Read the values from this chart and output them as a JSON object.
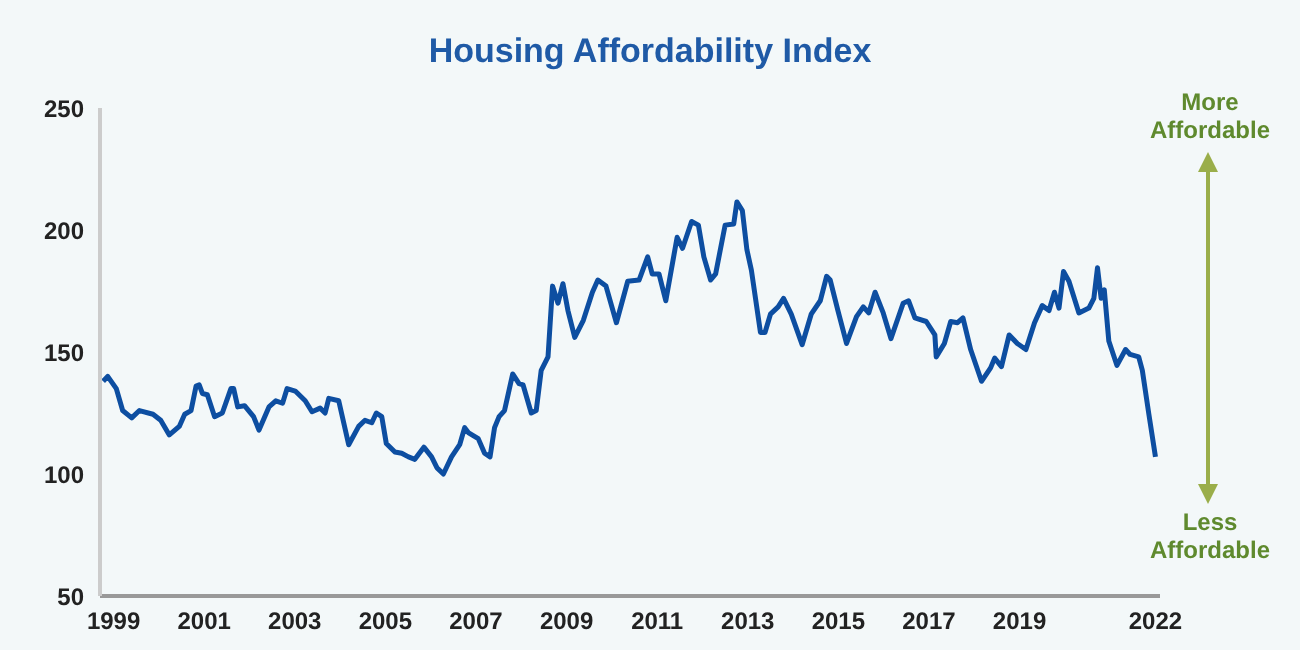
{
  "chart_data": {
    "type": "line",
    "title": "Housing Affordability Index",
    "x": [
      1998.77,
      1998.87,
      1999.06,
      1999.2,
      1999.4,
      1999.57,
      1999.87,
      2000.04,
      2000.23,
      2000.45,
      2000.57,
      2000.71,
      2000.82,
      2000.89,
      2000.96,
      2001.07,
      2001.23,
      2001.4,
      2001.59,
      2001.65,
      2001.74,
      2001.89,
      2002.09,
      2002.21,
      2002.43,
      2002.58,
      2002.73,
      2002.83,
      2003.01,
      2003.23,
      2003.38,
      2003.56,
      2003.67,
      2003.75,
      2003.97,
      2004.19,
      2004.41,
      2004.55,
      2004.7,
      2004.8,
      2004.92,
      2005.02,
      2005.21,
      2005.36,
      2005.51,
      2005.65,
      2005.85,
      2006.02,
      2006.14,
      2006.28,
      2006.46,
      2006.64,
      2006.75,
      2006.83,
      2007.05,
      2007.19,
      2007.31,
      2007.41,
      2007.51,
      2007.63,
      2007.81,
      2007.95,
      2008.04,
      2008.22,
      2008.33,
      2008.44,
      2008.59,
      2008.69,
      2008.81,
      2008.92,
      2009.03,
      2009.18,
      2009.37,
      2009.57,
      2009.69,
      2009.87,
      2010.1,
      2010.35,
      2010.6,
      2010.79,
      2010.89,
      2011.04,
      2011.19,
      2011.44,
      2011.56,
      2011.76,
      2011.91,
      2012.03,
      2012.18,
      2012.29,
      2012.5,
      2012.69,
      2012.76,
      2012.88,
      2012.98,
      2013.08,
      2013.28,
      2013.38,
      2013.5,
      2013.67,
      2013.79,
      2013.96,
      2014.2,
      2014.4,
      2014.6,
      2014.74,
      2014.82,
      2014.99,
      2015.18,
      2015.4,
      2015.55,
      2015.67,
      2015.81,
      2015.99,
      2016.16,
      2016.43,
      2016.55,
      2016.69,
      2016.94,
      2017.13,
      2017.16,
      2017.34,
      2017.48,
      2017.63,
      2017.75,
      2017.92,
      2018.16,
      2018.36,
      2018.45,
      2018.6,
      2018.77,
      2018.95,
      2019.14,
      2019.33,
      2019.5,
      2019.65,
      2019.77,
      2019.87,
      2019.97,
      2020.09,
      2020.31,
      2020.53,
      2020.64,
      2020.72,
      2020.8,
      2020.87,
      2020.97,
      2021.15,
      2021.34,
      2021.44,
      2021.63,
      2021.71,
      2021.85,
      2022.0
    ],
    "series": [
      {
        "color": "#0d4ea1",
        "values": [
          138,
          140,
          135,
          126,
          123,
          126,
          124.5,
          122,
          116,
          119.5,
          124.5,
          126,
          136,
          136.5,
          133,
          132.5,
          123.5,
          125,
          135,
          135,
          127.5,
          128,
          123.5,
          118,
          127.5,
          130,
          129,
          135,
          134,
          130,
          125.5,
          127,
          125,
          131,
          130,
          112,
          119.5,
          122,
          121,
          125,
          123.5,
          112.5,
          109,
          108.5,
          107,
          106,
          111,
          107,
          102.5,
          100,
          107,
          112,
          119,
          117,
          114.5,
          108.5,
          107,
          119,
          123.5,
          126,
          141,
          137,
          136.5,
          125,
          126,
          142.5,
          148,
          177,
          170,
          178,
          167,
          156,
          163,
          174.5,
          179.5,
          177,
          162,
          179,
          179.5,
          189,
          182,
          182,
          171,
          197,
          192.5,
          203.5,
          202,
          189,
          179.5,
          182,
          202,
          202.5,
          211.5,
          208,
          192,
          183.5,
          158,
          158,
          165.5,
          168.5,
          172,
          165.5,
          153,
          165.5,
          171,
          181,
          179.5,
          167,
          153.5,
          164.5,
          168.5,
          166,
          174.5,
          166,
          155.5,
          170,
          171,
          164,
          162.5,
          157,
          148,
          153.5,
          162.5,
          162,
          164,
          151,
          138,
          143.5,
          147.5,
          144,
          157,
          153.5,
          151,
          162,
          169,
          167,
          174.5,
          168,
          183,
          179,
          166,
          168,
          172,
          184.5,
          172,
          175.5,
          154.5,
          144.5,
          151,
          149,
          148,
          142.5,
          125,
          107
        ]
      }
    ],
    "xlim": [
      1998.7,
      2022.1
    ],
    "xticks": [
      1999,
      2001,
      2003,
      2005,
      2007,
      2009,
      2011,
      2013,
      2015,
      2017,
      2019,
      2022
    ],
    "ylim": [
      50,
      250
    ],
    "yticks": [
      50,
      100,
      150,
      200,
      250
    ],
    "annotations": [
      "More Affordable",
      "Less Affordable"
    ]
  }
}
